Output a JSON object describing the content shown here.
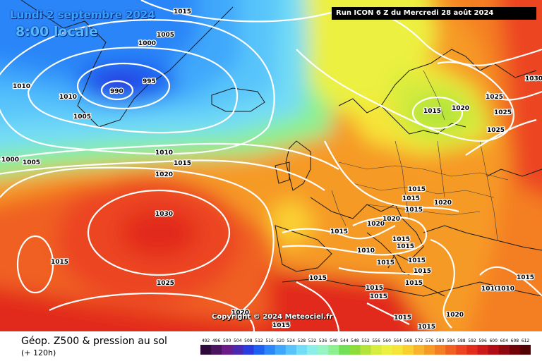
{
  "header": {
    "date": "Lundi 2 septembre 2024",
    "time": "8:00 locale",
    "run": "Run ICON 6 Z du Mercredi 28 août 2024"
  },
  "footer": {
    "title": "Géop. Z500 & pression au sol",
    "subtitle": "(+ 120h)",
    "copyright": "Copyright © 2024 Meteociel.fr"
  },
  "legend": {
    "values": [
      "492",
      "496",
      "500",
      "504",
      "508",
      "512",
      "516",
      "520",
      "524",
      "528",
      "532",
      "536",
      "540",
      "544",
      "548",
      "552",
      "556",
      "560",
      "564",
      "568",
      "572",
      "576",
      "580",
      "584",
      "588",
      "592",
      "596",
      "600",
      "604",
      "608",
      "612"
    ],
    "colors": [
      "#2e0a3a",
      "#4b1460",
      "#6a1c88",
      "#4a28b0",
      "#2a3ce0",
      "#1e60f0",
      "#2c86f8",
      "#3fa8fb",
      "#58c4fa",
      "#73dcf6",
      "#8ceee8",
      "#98f4c2",
      "#8ef08e",
      "#74e058",
      "#8cdc3a",
      "#b4e43a",
      "#d6ec3e",
      "#ecf040",
      "#f6e438",
      "#fad030",
      "#f8b42c",
      "#f69a28",
      "#f47e24",
      "#f06020",
      "#ec4420",
      "#e22c1c",
      "#cc1a18",
      "#b00e14",
      "#8e0810",
      "#700408",
      "#520204"
    ]
  },
  "isobars": {
    "labels": [
      "1015",
      "1005",
      "1000",
      "995",
      "990",
      "1010",
      "1005",
      "1000",
      "1010",
      "1005",
      "1010",
      "1015",
      "1020",
      "1030",
      "1025",
      "1015",
      "1020",
      "1015",
      "1015",
      "1015",
      "1020",
      "1020",
      "1020",
      "1015",
      "1015",
      "1015",
      "1015",
      "1015",
      "1015",
      "1015",
      "1010",
      "1015",
      "1015",
      "1015",
      "1015",
      "1015",
      "1015",
      "1015",
      "1025",
      "1025",
      "1025",
      "1015",
      "1020",
      "1030",
      "1010",
      "1010",
      "1020"
    ]
  }
}
